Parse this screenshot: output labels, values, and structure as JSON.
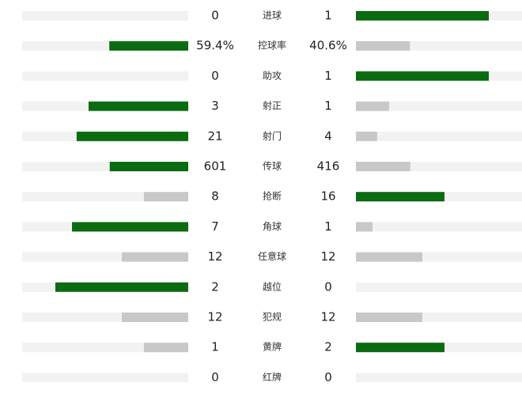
{
  "stats": [
    {
      "label": "进球",
      "home": 0,
      "away": 1
    },
    {
      "label": "控球率",
      "home": 59.4,
      "away": 40.6,
      "home_label": "59.4%",
      "away_label": "40.6%"
    },
    {
      "label": "助攻",
      "home": 0,
      "away": 1
    },
    {
      "label": "射正",
      "home": 3,
      "away": 1
    },
    {
      "label": "射门",
      "home": 21,
      "away": 4
    },
    {
      "label": "传球",
      "home": 601,
      "away": 416
    },
    {
      "label": "抢断",
      "home": 8,
      "away": 16
    },
    {
      "label": "角球",
      "home": 7,
      "away": 1
    },
    {
      "label": "任意球",
      "home": 12,
      "away": 12
    },
    {
      "label": "越位",
      "home": 2,
      "away": 0
    },
    {
      "label": "犯规",
      "home": 12,
      "away": 12
    },
    {
      "label": "黄牌",
      "home": 1,
      "away": 2
    },
    {
      "label": "红牌",
      "home": 0,
      "away": 0
    }
  ]
}
